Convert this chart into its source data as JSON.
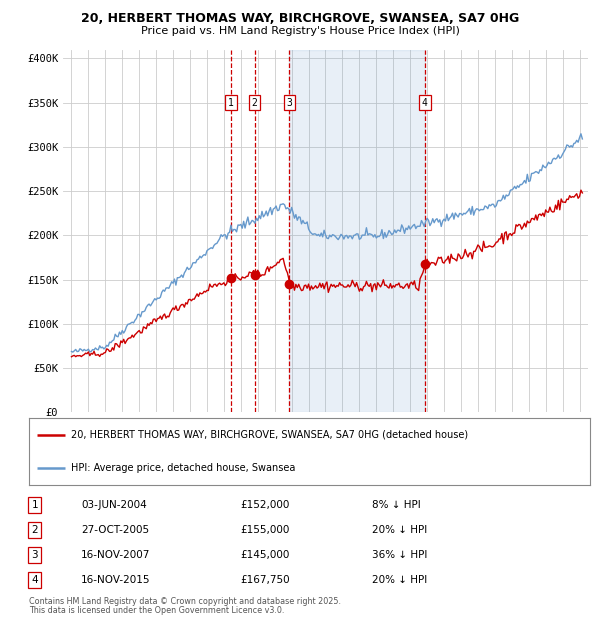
{
  "title_line1": "20, HERBERT THOMAS WAY, BIRCHGROVE, SWANSEA, SA7 0HG",
  "title_line2": "Price paid vs. HM Land Registry's House Price Index (HPI)",
  "legend_label_red": "20, HERBERT THOMAS WAY, BIRCHGROVE, SWANSEA, SA7 0HG (detached house)",
  "legend_label_blue": "HPI: Average price, detached house, Swansea",
  "footer_line1": "Contains HM Land Registry data © Crown copyright and database right 2025.",
  "footer_line2": "This data is licensed under the Open Government Licence v3.0.",
  "transactions": [
    {
      "num": 1,
      "date": "03-JUN-2004",
      "price": 152000,
      "pct": "8%",
      "year": 2004.42
    },
    {
      "num": 2,
      "date": "27-OCT-2005",
      "price": 155000,
      "pct": "20%",
      "year": 2005.82
    },
    {
      "num": 3,
      "date": "16-NOV-2007",
      "price": 145000,
      "pct": "36%",
      "year": 2007.87
    },
    {
      "num": 4,
      "date": "16-NOV-2015",
      "price": 167750,
      "pct": "20%",
      "year": 2015.87
    }
  ],
  "shaded_region": [
    2007.87,
    2015.87
  ],
  "ylim": [
    0,
    410000
  ],
  "xlim_start": 1994.5,
  "xlim_end": 2025.5,
  "yticks": [
    0,
    50000,
    100000,
    150000,
    200000,
    250000,
    300000,
    350000,
    400000
  ],
  "ytick_labels": [
    "£0",
    "£50K",
    "£100K",
    "£150K",
    "£200K",
    "£250K",
    "£300K",
    "£350K",
    "£400K"
  ],
  "xticks": [
    1995,
    1996,
    1997,
    1998,
    1999,
    2000,
    2001,
    2002,
    2003,
    2004,
    2005,
    2006,
    2007,
    2008,
    2009,
    2010,
    2011,
    2012,
    2013,
    2014,
    2015,
    2016,
    2017,
    2018,
    2019,
    2020,
    2021,
    2022,
    2023,
    2024,
    2025
  ],
  "red_color": "#cc0000",
  "blue_color": "#6699cc",
  "grid_color": "#cccccc",
  "background_color": "#ffffff",
  "dashed_color": "#cc0000"
}
